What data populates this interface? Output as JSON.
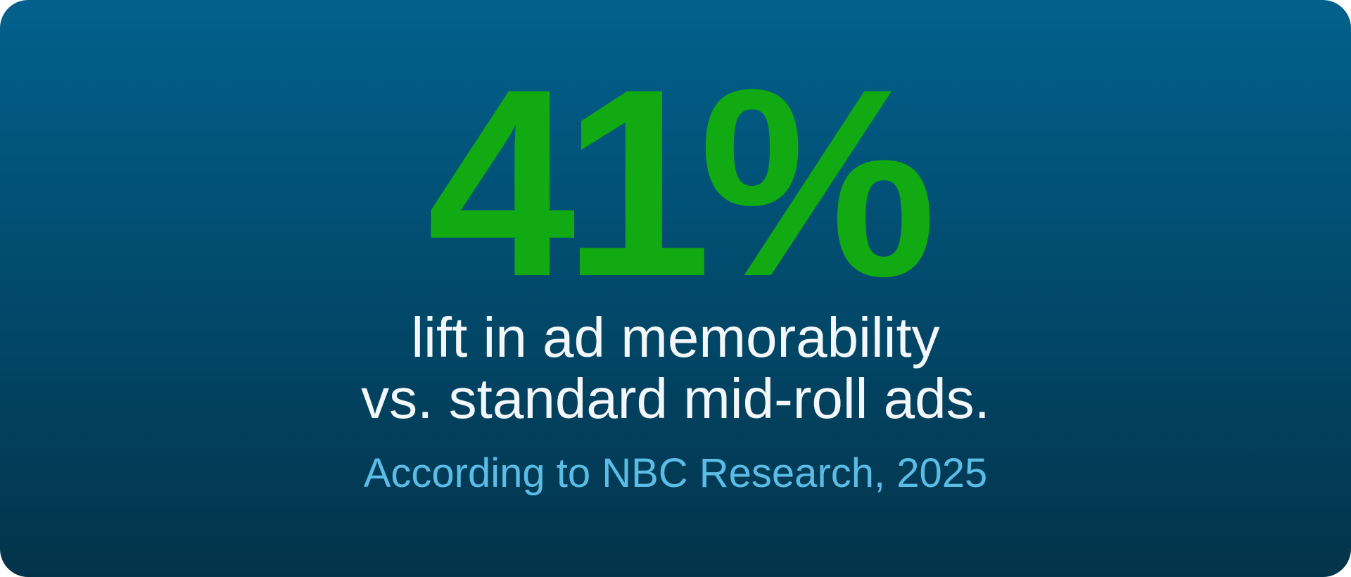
{
  "stat": "41%",
  "description": [
    "lift in ad memorability",
    "vs. standard mid-roll ads."
  ],
  "source": "According to NBC Research, 2025"
}
